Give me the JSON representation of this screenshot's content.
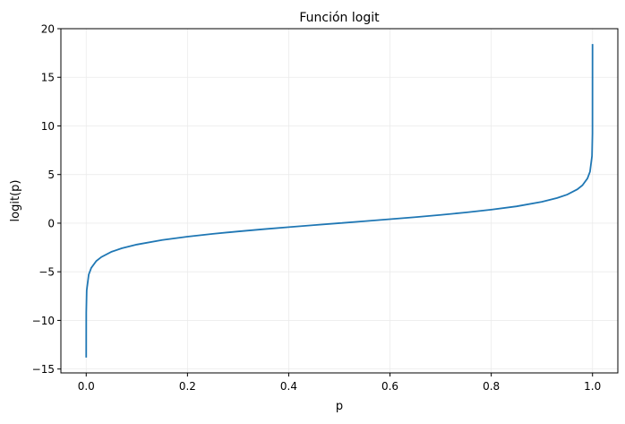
{
  "chart_data": {
    "type": "line",
    "title": "Función logit",
    "xlabel": "p",
    "ylabel": "logit(p)",
    "xlim": [
      -0.05,
      1.05
    ],
    "ylim": [
      -15.4,
      20
    ],
    "xticks": [
      0.0,
      0.2,
      0.4,
      0.6,
      0.8,
      1.0
    ],
    "xtick_labels": [
      "0.0",
      "0.2",
      "0.4",
      "0.6",
      "0.8",
      "1.0"
    ],
    "yticks": [
      -15,
      -10,
      -5,
      0,
      5,
      10,
      15,
      20
    ],
    "ytick_labels": [
      "−15",
      "−10",
      "−5",
      "0",
      "5",
      "10",
      "15",
      "20"
    ],
    "grid": true,
    "series": [
      {
        "color": "#1f77b4",
        "x": [
          1e-06,
          0.0001,
          0.001,
          0.005,
          0.01,
          0.02,
          0.03,
          0.05,
          0.07,
          0.1,
          0.15,
          0.2,
          0.25,
          0.3,
          0.35,
          0.4,
          0.45,
          0.5,
          0.55,
          0.6,
          0.65,
          0.7,
          0.75,
          0.8,
          0.85,
          0.9,
          0.93,
          0.95,
          0.97,
          0.98,
          0.99,
          0.995,
          0.999,
          0.9999,
          0.99999999
        ],
        "y": [
          -13.82,
          -9.21,
          -6.91,
          -5.29,
          -4.6,
          -3.89,
          -3.48,
          -2.94,
          -2.59,
          -2.2,
          -1.73,
          -1.39,
          -1.1,
          -0.85,
          -0.62,
          -0.41,
          -0.2,
          0.0,
          0.2,
          0.41,
          0.62,
          0.85,
          1.1,
          1.39,
          1.73,
          2.2,
          2.59,
          2.94,
          3.48,
          3.89,
          4.6,
          5.29,
          6.91,
          9.21,
          18.42
        ]
      }
    ]
  }
}
